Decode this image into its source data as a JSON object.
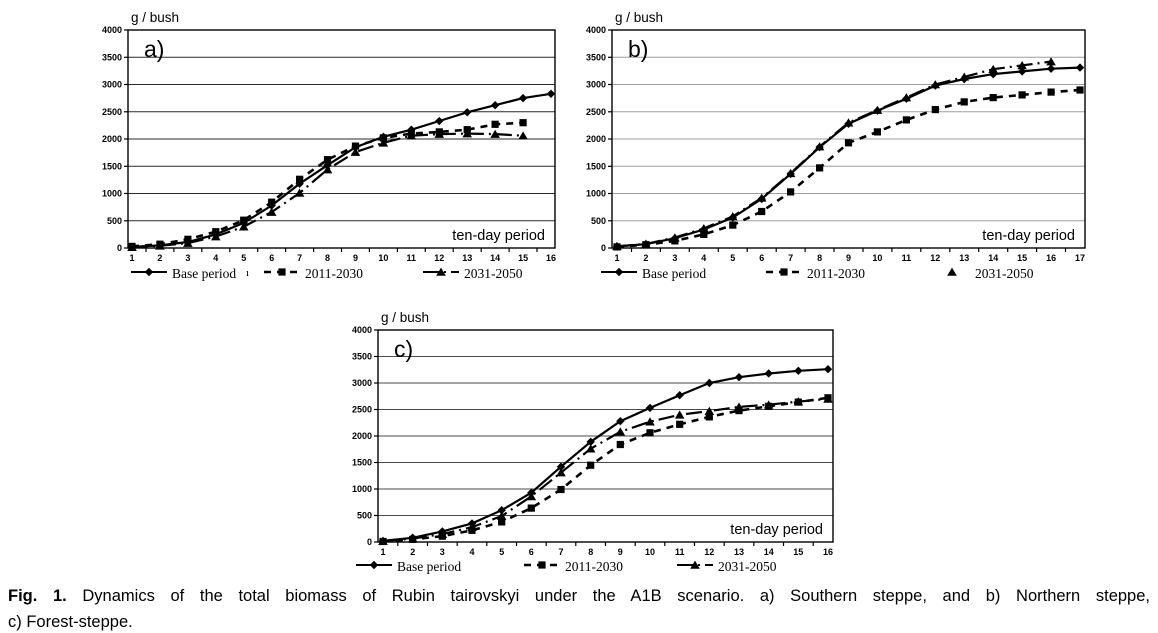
{
  "caption": {
    "prefix": "Fig. 1.",
    "line1": "Dynamics of the total biomass of Rubin tairovskyi under the A1B scenario. a) Southern steppe, and b) Northern steppe,",
    "line2": "c) Forest-steppe."
  },
  "colors": {
    "series_line": "#000000",
    "grid_a": "#2a2a2a",
    "grid_b": "#9e9e9e",
    "grid_c": "#4a4a4a"
  },
  "chart_data": [
    {
      "id": "a",
      "type": "line",
      "panel_label": "a)",
      "ylabel": "g / bush",
      "xlabel": "ten-day period",
      "ylim": [
        0,
        4000
      ],
      "ytick_step": 500,
      "grid": "horizontal",
      "grid_color": "#2a2a2a",
      "legend_position": "bottom",
      "legend_stray": "ı",
      "categories": [
        1,
        2,
        3,
        4,
        5,
        6,
        7,
        8,
        9,
        10,
        11,
        12,
        13,
        14,
        15,
        16
      ],
      "series": [
        {
          "name": "Base period",
          "marker": "diamond",
          "line": "solid",
          "legend_line": "solid",
          "values": [
            20,
            50,
            110,
            250,
            460,
            780,
            1180,
            1520,
            1850,
            2040,
            2170,
            2330,
            2490,
            2620,
            2750,
            2830
          ]
        },
        {
          "name": "2011-2030",
          "marker": "square",
          "line": "dash",
          "legend_line": "dash",
          "values": [
            30,
            70,
            160,
            300,
            510,
            840,
            1260,
            1620,
            1870,
            2020,
            2100,
            2130,
            2170,
            2270,
            2300
          ]
        },
        {
          "name": "2031-2050",
          "marker": "triangle",
          "line": "dashdot",
          "legend_line": "dashdot",
          "values": [
            15,
            40,
            90,
            210,
            390,
            660,
            1010,
            1440,
            1760,
            1930,
            2060,
            2090,
            2100,
            2090,
            2060
          ]
        }
      ]
    },
    {
      "id": "b",
      "type": "line",
      "panel_label": "b)",
      "ylabel": "g / bush",
      "xlabel": "ten-day period",
      "ylim": [
        0,
        4000
      ],
      "ytick_step": 500,
      "grid": "horizontal",
      "grid_color": "#9e9e9e",
      "legend_position": "bottom",
      "categories": [
        1,
        2,
        3,
        4,
        5,
        6,
        7,
        8,
        9,
        10,
        11,
        12,
        13,
        14,
        15,
        16,
        17
      ],
      "series": [
        {
          "name": "Base period",
          "marker": "diamond",
          "line": "solid",
          "legend_line": "solid",
          "values": [
            30,
            70,
            180,
            340,
            560,
            900,
            1360,
            1850,
            2280,
            2520,
            2740,
            2980,
            3100,
            3190,
            3240,
            3290,
            3310
          ]
        },
        {
          "name": "2011-2030",
          "marker": "square",
          "line": "dash",
          "legend_line": "dash",
          "values": [
            20,
            60,
            130,
            250,
            420,
            670,
            1030,
            1470,
            1930,
            2130,
            2350,
            2540,
            2680,
            2760,
            2810,
            2860,
            2900
          ]
        },
        {
          "name": "2031-2050",
          "marker": "triangle",
          "line": "dashdot",
          "legend_line": "none",
          "values": [
            30,
            75,
            190,
            360,
            580,
            920,
            1370,
            1860,
            2300,
            2530,
            2760,
            3000,
            3140,
            3280,
            3350,
            3420
          ]
        }
      ]
    },
    {
      "id": "c",
      "type": "line",
      "panel_label": "c)",
      "ylabel": "g / bush",
      "xlabel": "ten-day period",
      "ylim": [
        0,
        4000
      ],
      "ytick_step": 500,
      "grid": "horizontal",
      "grid_color": "#4a4a4a",
      "legend_position": "bottom",
      "categories": [
        1,
        2,
        3,
        4,
        5,
        6,
        7,
        8,
        9,
        10,
        11,
        12,
        13,
        14,
        15,
        16
      ],
      "series": [
        {
          "name": "Base period",
          "marker": "diamond",
          "line": "solid",
          "legend_line": "solid",
          "values": [
            20,
            80,
            200,
            350,
            600,
            930,
            1420,
            1890,
            2280,
            2530,
            2770,
            3000,
            3110,
            3180,
            3230,
            3260
          ]
        },
        {
          "name": "2011-2030",
          "marker": "square",
          "line": "dash",
          "legend_line": "dash",
          "values": [
            10,
            50,
            110,
            220,
            380,
            640,
            990,
            1450,
            1840,
            2060,
            2220,
            2360,
            2480,
            2560,
            2640,
            2720
          ]
        },
        {
          "name": "2031-2050",
          "marker": "triangle",
          "line": "dashdot",
          "legend_line": "dashdot",
          "values": [
            15,
            65,
            150,
            280,
            490,
            860,
            1310,
            1760,
            2080,
            2270,
            2400,
            2470,
            2550,
            2590,
            2650,
            2700
          ]
        }
      ]
    }
  ]
}
